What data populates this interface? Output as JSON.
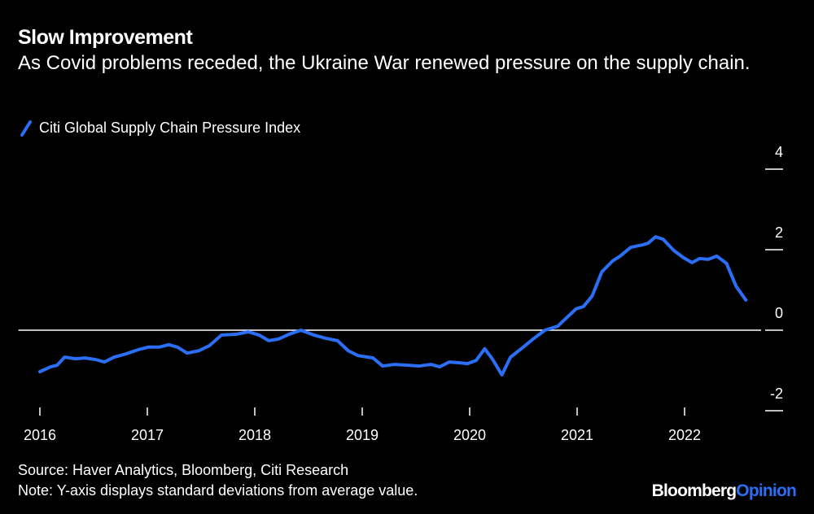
{
  "chart_data": {
    "type": "line",
    "title": "Slow Improvement",
    "subtitle": "As Covid problems receded, the Ukraine War renewed pressure on the supply chain.",
    "source": "Source: Haver Analytics, Bloomberg, Citi Research",
    "note": "Note: Y-axis displays standard deviations from average value.",
    "brand": "Bloomberg",
    "brand_accent": "Opinion",
    "x": [
      2016.0,
      2016.1,
      2016.16,
      2016.23,
      2016.33,
      2016.42,
      2016.52,
      2016.6,
      2016.69,
      2016.8,
      2016.92,
      2017.01,
      2017.11,
      2017.2,
      2017.28,
      2017.37,
      2017.48,
      2017.58,
      2017.69,
      2017.83,
      2017.94,
      2018.04,
      2018.13,
      2018.22,
      2018.32,
      2018.43,
      2018.55,
      2018.66,
      2018.77,
      2018.87,
      2018.96,
      2019.1,
      2019.19,
      2019.3,
      2019.42,
      2019.53,
      2019.64,
      2019.72,
      2019.81,
      2019.91,
      2019.98,
      2020.06,
      2020.14,
      2020.21,
      2020.3,
      2020.38,
      2020.48,
      2020.59,
      2020.7,
      2020.82,
      2020.89,
      2020.99,
      2021.06,
      2021.14,
      2021.23,
      2021.33,
      2021.4,
      2021.5,
      2021.61,
      2021.66,
      2021.73,
      2021.8,
      2021.9,
      2021.99,
      2022.07,
      2022.14,
      2022.22,
      2022.3,
      2022.39,
      2022.48,
      2022.57
    ],
    "series": [
      {
        "name": "Citi Global Supply Chain Pressure Index",
        "color": "#2b6ff6",
        "values": [
          -1.03,
          -0.91,
          -0.87,
          -0.67,
          -0.71,
          -0.69,
          -0.73,
          -0.79,
          -0.67,
          -0.59,
          -0.48,
          -0.42,
          -0.42,
          -0.36,
          -0.42,
          -0.57,
          -0.51,
          -0.38,
          -0.12,
          -0.1,
          -0.04,
          -0.12,
          -0.26,
          -0.22,
          -0.1,
          0.0,
          -0.12,
          -0.2,
          -0.26,
          -0.51,
          -0.63,
          -0.69,
          -0.89,
          -0.85,
          -0.87,
          -0.89,
          -0.85,
          -0.91,
          -0.79,
          -0.81,
          -0.83,
          -0.75,
          -0.46,
          -0.71,
          -1.11,
          -0.67,
          -0.46,
          -0.22,
          0.0,
          0.1,
          0.28,
          0.53,
          0.59,
          0.85,
          1.45,
          1.72,
          1.84,
          2.06,
          2.12,
          2.16,
          2.32,
          2.26,
          1.98,
          1.8,
          1.68,
          1.78,
          1.76,
          1.84,
          1.66,
          1.09,
          0.75
        ]
      }
    ],
    "xlim": [
      2015.8,
      2022.8
    ],
    "xticks": [
      2016,
      2017,
      2018,
      2019,
      2020,
      2021,
      2022
    ],
    "ylim": [
      -2,
      4
    ],
    "yticks": [
      -2,
      0,
      2,
      4
    ],
    "zero_line": true,
    "grid": false
  }
}
